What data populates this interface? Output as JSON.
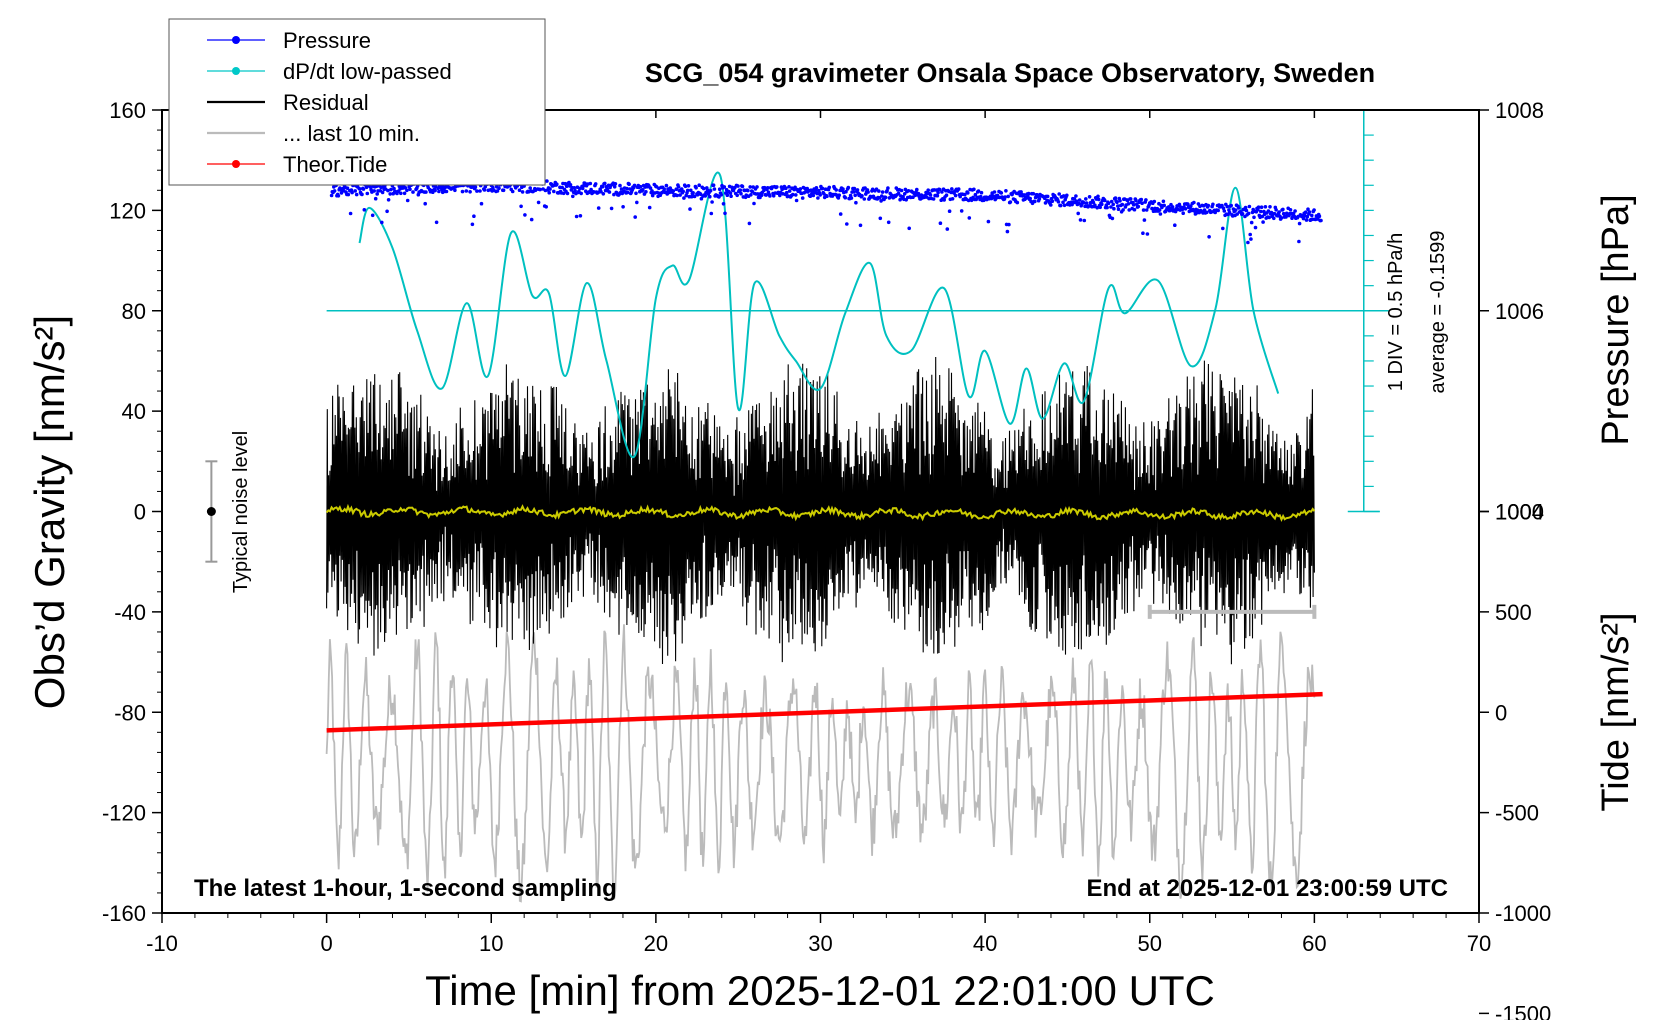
{
  "chart_data": {
    "type": "line",
    "title": "SCG_054 gravimeter Onsala Space Observatory, Sweden",
    "xlabel": "Time [min] from 2025-12-01 22:01:00 UTC",
    "ylabel_left": "Obs’d Gravity [nm/s²]",
    "ylabel_right_top": "Pressure [hPa]",
    "ylabel_right_bottom": "Tide [nm/s²]",
    "xlim": [
      -10,
      70
    ],
    "xticks": [
      "-10",
      "0",
      "10",
      "20",
      "30",
      "40",
      "50",
      "60",
      "70"
    ],
    "ylim_left": [
      -160,
      160
    ],
    "yticks_left": [
      "160",
      "120",
      "80",
      "40",
      "0",
      "-40",
      "-80",
      "-120",
      "-160"
    ],
    "pressure_ticks": [
      "1008",
      "1006",
      "1004"
    ],
    "tide_ticks": [
      "1000",
      "500",
      "0",
      "-500",
      "-1000",
      "-1500"
    ],
    "grid": false,
    "legend_position": "top-left",
    "legend": [
      {
        "name": "Pressure",
        "color": "#0000ff",
        "style": "line-dot"
      },
      {
        "name": "dP/dt low-passed",
        "color": "#00c8c8",
        "style": "line-dot"
      },
      {
        "name": "Residual",
        "color": "#000000",
        "style": "line"
      },
      {
        "name": "... last 10 min.",
        "color": "#bbbbbb",
        "style": "line"
      },
      {
        "name": "Theor.Tide",
        "color": "#ff0000",
        "style": "line-dot"
      }
    ],
    "annotations": {
      "noise": "Typical noise level",
      "scale_div": "1 DIV = 0.5 hPa/h",
      "scale_avg": "average = -0.1599",
      "bottom_left": "The latest 1-hour, 1-second sampling",
      "bottom_right": "End at 2025-12-01 23:00:59 UTC"
    },
    "noise_level": {
      "x": -7,
      "center": 0,
      "half_range": 20
    },
    "last10_bar": {
      "x_start": 50,
      "x_end": 60
    },
    "series": [
      {
        "name": "Pressure",
        "axis": "pressure_hPa",
        "x": [
          0,
          10,
          20,
          30,
          40,
          50,
          60
        ],
        "y": [
          1007.2,
          1007.25,
          1007.2,
          1007.18,
          1007.15,
          1007.05,
          1006.95
        ]
      },
      {
        "name": "dP/dt low-passed",
        "axis": "left_scale",
        "x": [
          2,
          2.6,
          4,
          5.5,
          7,
          8.5,
          9.8,
          11.2,
          12.5,
          13.5,
          14.5,
          15.8,
          17,
          18.7,
          20,
          21,
          22,
          23.9,
          25,
          26,
          27.5,
          28.5,
          30,
          31.5,
          33,
          34,
          35.5,
          37.5,
          39,
          40,
          41.5,
          42.5,
          43.5,
          44.8,
          46,
          47.5,
          48.5,
          50.5,
          52.5,
          54,
          55.2,
          56.3,
          57.8
        ],
        "y": [
          107,
          121,
          105,
          72,
          49,
          83,
          54,
          111,
          86,
          87,
          54,
          91,
          60,
          22,
          85,
          98,
          92,
          134,
          41,
          91,
          70,
          60,
          49,
          79,
          99,
          70,
          64,
          89,
          46,
          64,
          35,
          57,
          37,
          59,
          44,
          89,
          79,
          92,
          58,
          81,
          129,
          80,
          47
        ]
      },
      {
        "name": "Residual",
        "axis": "left",
        "x_range": [
          0,
          60
        ],
        "amplitude_nm_s2": 45
      },
      {
        "name": "... last 10 min.",
        "axis": "left",
        "x_range": [
          0,
          60
        ],
        "center_nm_s2": -100,
        "amplitude_nm_s2": 50
      },
      {
        "name": "Theor.Tide",
        "axis": "tide_nm_s2",
        "x": [
          0,
          60.5
        ],
        "y": [
          -90,
          90
        ]
      }
    ]
  }
}
